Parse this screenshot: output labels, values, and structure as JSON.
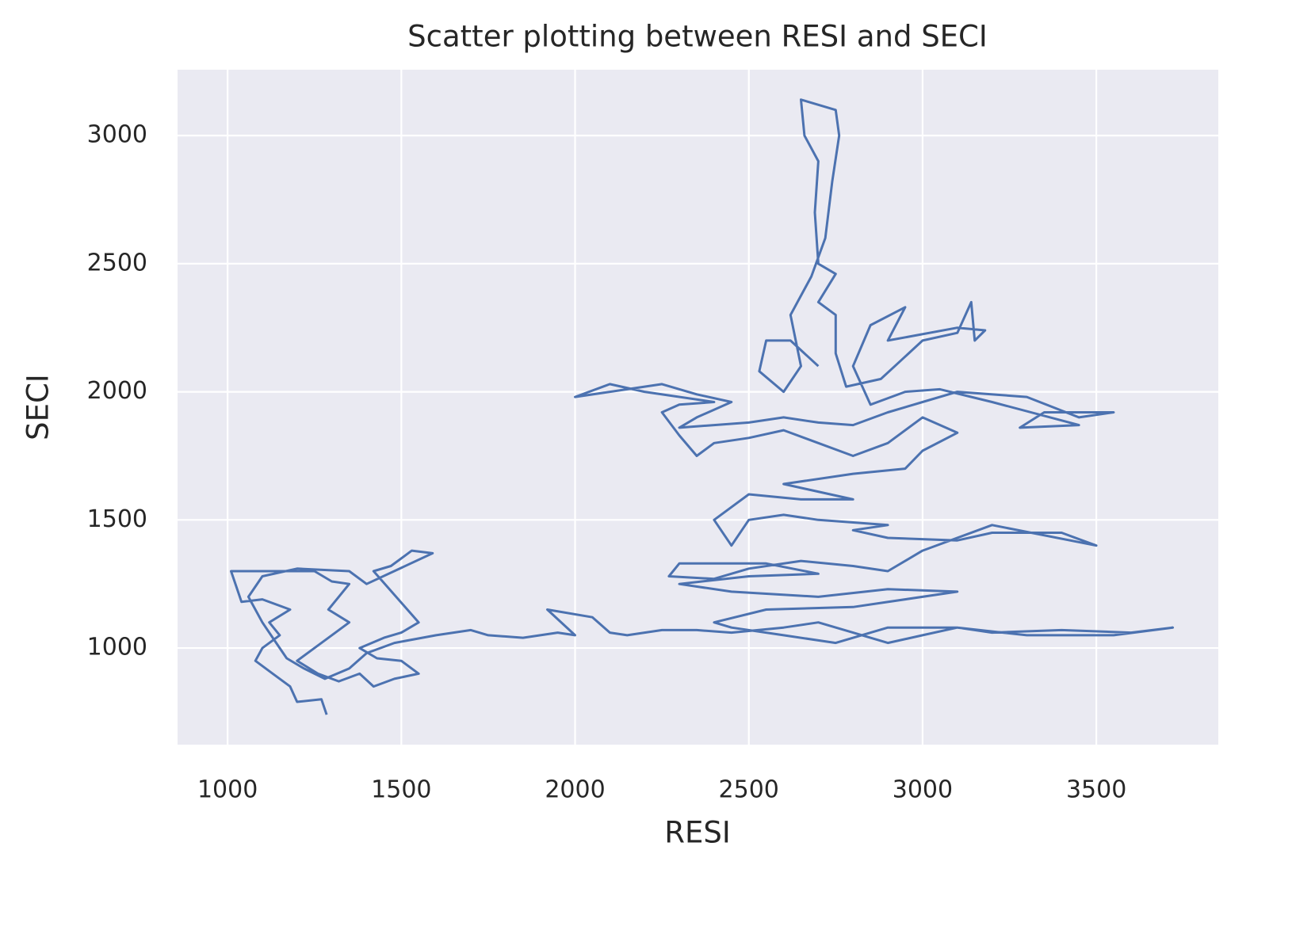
{
  "chart_data": {
    "type": "line",
    "title": "Scatter plotting between RESI and SECI",
    "x_label": "RESI",
    "y_label": "SECI",
    "xlim": [
      856,
      3851
    ],
    "ylim": [
      623,
      3257
    ],
    "xticks": [
      1000,
      1500,
      2000,
      2500,
      3000,
      3500
    ],
    "yticks": [
      1000,
      1500,
      2000,
      2500,
      3000
    ],
    "grid": true,
    "series": [
      {
        "color": "#4c72b0",
        "x": [
          1285,
          1270,
          1200,
          1180,
          1130,
          1080,
          1100,
          1150,
          1120,
          1180,
          1100,
          1040,
          1010,
          1250,
          1300,
          1350,
          1320,
          1290,
          1350,
          1300,
          1250,
          1200,
          1260,
          1320,
          1380,
          1420,
          1480,
          1550,
          1500,
          1430,
          1380,
          1450,
          1500,
          1550,
          1420,
          1470,
          1530,
          1590,
          1400,
          1350,
          1200,
          1100,
          1060,
          1100,
          1140,
          1170,
          1220,
          1280,
          1350,
          1400,
          1480,
          1600,
          1700,
          1750,
          1850,
          1950,
          2000,
          1920,
          2050,
          2100,
          2150,
          2250,
          2350,
          2450,
          2600,
          2700,
          2800,
          2900,
          3000,
          3100,
          3200,
          3400,
          3600,
          3720,
          3550,
          3300,
          3100,
          2900,
          2750,
          2600,
          2450,
          2400,
          2550,
          2800,
          3100,
          2900,
          2700,
          2450,
          2300,
          2500,
          2700,
          2550,
          2300,
          2270,
          2400,
          2500,
          2650,
          2800,
          2900,
          3000,
          3200,
          3500,
          3400,
          3200,
          3100,
          2900,
          2800,
          2900,
          2700,
          2600,
          2500,
          2450,
          2400,
          2500,
          2650,
          2800,
          2600,
          2800,
          2950,
          3000,
          3100,
          3000,
          2900,
          2800,
          2700,
          2600,
          2500,
          2400,
          2350,
          2300,
          2250,
          2300,
          2400,
          2200,
          2100,
          2000,
          2150,
          2250,
          2350,
          2450,
          2350,
          2300,
          2400,
          2500,
          2600,
          2700,
          2800,
          2900,
          3000,
          3100,
          3300,
          3450,
          3550,
          3350,
          3280,
          3450,
          3200,
          3050,
          2950,
          2850,
          2800,
          2850,
          2950,
          2900,
          3100,
          3180,
          3150,
          3140,
          3100,
          3000,
          2920,
          2880,
          2780,
          2750,
          2750,
          2700,
          2750,
          2700,
          2690,
          2700,
          2660,
          2650,
          2750,
          2760,
          2740,
          2720,
          2680,
          2620,
          2650,
          2600,
          2530,
          2550,
          2620,
          2700
        ],
        "values": [
          740,
          800,
          790,
          850,
          900,
          950,
          1000,
          1050,
          1100,
          1150,
          1190,
          1180,
          1300,
          1300,
          1260,
          1250,
          1200,
          1150,
          1100,
          1050,
          1000,
          950,
          900,
          870,
          900,
          850,
          880,
          900,
          950,
          960,
          1000,
          1040,
          1060,
          1100,
          1300,
          1320,
          1380,
          1370,
          1250,
          1300,
          1310,
          1280,
          1200,
          1100,
          1020,
          960,
          920,
          880,
          920,
          980,
          1020,
          1050,
          1070,
          1050,
          1040,
          1060,
          1050,
          1150,
          1120,
          1060,
          1050,
          1070,
          1070,
          1060,
          1080,
          1100,
          1060,
          1020,
          1050,
          1080,
          1060,
          1070,
          1060,
          1080,
          1050,
          1050,
          1080,
          1080,
          1020,
          1050,
          1080,
          1100,
          1150,
          1160,
          1220,
          1230,
          1200,
          1220,
          1250,
          1280,
          1290,
          1330,
          1330,
          1280,
          1270,
          1310,
          1340,
          1320,
          1300,
          1380,
          1480,
          1400,
          1450,
          1450,
          1420,
          1430,
          1460,
          1480,
          1500,
          1520,
          1500,
          1400,
          1500,
          1600,
          1580,
          1580,
          1640,
          1680,
          1700,
          1770,
          1840,
          1900,
          1800,
          1750,
          1800,
          1850,
          1820,
          1800,
          1750,
          1830,
          1920,
          1950,
          1960,
          2000,
          2030,
          1980,
          2010,
          2030,
          1990,
          1960,
          1900,
          1860,
          1870,
          1880,
          1900,
          1880,
          1870,
          1920,
          1960,
          2000,
          1980,
          1900,
          1920,
          1920,
          1860,
          1870,
          1960,
          2010,
          2000,
          1950,
          2100,
          2260,
          2330,
          2200,
          2250,
          2240,
          2200,
          2350,
          2230,
          2200,
          2100,
          2050,
          2020,
          2150,
          2300,
          2350,
          2460,
          2500,
          2700,
          2900,
          3000,
          3140,
          3100,
          3000,
          2820,
          2600,
          2450,
          2300,
          2100,
          2000,
          2080,
          2200,
          2200,
          2100
        ]
      }
    ]
  }
}
